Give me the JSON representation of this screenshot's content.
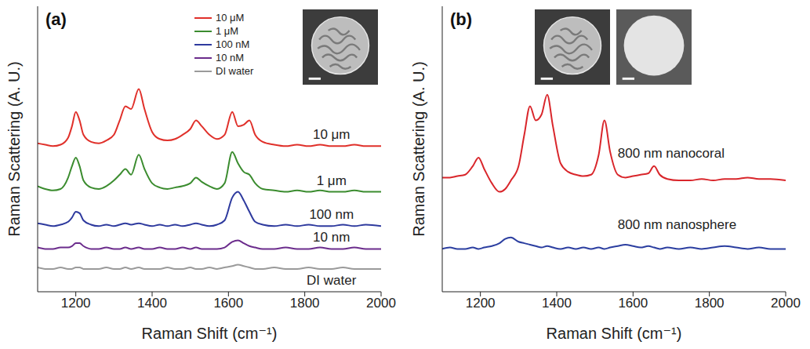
{
  "chart_data": [
    {
      "type": "line",
      "panel_label": "(a)",
      "x_label": "Raman Shift (cm⁻¹)",
      "y_label": "Raman Scattering (A. U.)",
      "xlim": [
        1100,
        2000
      ],
      "xticks": [
        1200,
        1400,
        1600,
        1800,
        2000
      ],
      "ylim": [
        0,
        100
      ],
      "tick_labels": "x",
      "legend": "top",
      "x": [
        1100,
        1120,
        1140,
        1160,
        1180,
        1190,
        1200,
        1210,
        1220,
        1240,
        1260,
        1280,
        1300,
        1315,
        1330,
        1345,
        1365,
        1380,
        1400,
        1420,
        1440,
        1460,
        1480,
        1500,
        1515,
        1530,
        1550,
        1570,
        1590,
        1610,
        1625,
        1640,
        1655,
        1670,
        1690,
        1720,
        1750,
        1780,
        1810,
        1840,
        1870,
        1900,
        1930,
        1960,
        2000
      ],
      "series": [
        {
          "name": "10 μM",
          "label": "10 μm",
          "color": "#e0302a",
          "values": [
            52,
            51.5,
            51,
            51.5,
            54,
            58,
            63,
            60,
            55,
            52.5,
            52,
            53,
            55,
            60,
            65,
            64,
            71,
            64,
            56,
            53.5,
            53,
            53.5,
            55,
            57,
            60,
            58,
            55,
            53.5,
            55,
            63,
            58,
            58.5,
            60,
            55,
            52.5,
            51.5,
            51,
            51.5,
            51,
            51.5,
            51,
            51,
            51.5,
            51,
            51
          ]
        },
        {
          "name": "1 μM",
          "label": "1 μm",
          "color": "#3b8c2f",
          "values": [
            37,
            36,
            35.5,
            36,
            40,
            44,
            47,
            44,
            39,
            36.5,
            36,
            37,
            39,
            41,
            43,
            41,
            48,
            43,
            38,
            36.5,
            36,
            36.5,
            37,
            38,
            40,
            38.5,
            37,
            36,
            38,
            49,
            45,
            42,
            41,
            38,
            36,
            35.5,
            35,
            35.5,
            35,
            35.5,
            35,
            35,
            35.5,
            35,
            35
          ]
        },
        {
          "name": "100 nM",
          "label": "100 nm",
          "color": "#2e3a9e",
          "values": [
            24,
            23.5,
            23,
            23.5,
            24.5,
            26,
            28,
            27.5,
            25,
            23.5,
            23,
            23.5,
            23,
            23.5,
            24,
            23.5,
            24,
            23.5,
            23,
            23.5,
            23,
            23.5,
            23,
            23.5,
            24,
            23.5,
            23,
            23.5,
            25,
            33,
            35,
            32,
            28,
            24.5,
            23.5,
            23,
            23.5,
            23,
            23.5,
            23,
            23,
            23.5,
            23,
            23.5,
            23
          ]
        },
        {
          "name": "10 nM",
          "label": "10 nm",
          "color": "#6b2c8c",
          "values": [
            15.5,
            15,
            15,
            15.5,
            15.5,
            16,
            17,
            17,
            16,
            15,
            15,
            15.5,
            15,
            15,
            15.5,
            15,
            15.5,
            15,
            15,
            15.5,
            15,
            15,
            15.5,
            15,
            15.5,
            15,
            15,
            15,
            15.5,
            17.5,
            18,
            17,
            16,
            15.5,
            15,
            15,
            15.5,
            15,
            15,
            15.5,
            15,
            15,
            15.5,
            15,
            15
          ]
        },
        {
          "name": "DI water",
          "label": "DI water",
          "color": "#9a9a9a",
          "values": [
            8.5,
            8,
            8,
            8.5,
            8,
            8,
            8.5,
            8.5,
            8,
            8,
            8,
            8.5,
            8,
            8,
            8.5,
            8,
            8.5,
            8,
            8,
            8,
            8.5,
            8,
            8,
            8.5,
            8,
            8,
            8.5,
            8,
            8.5,
            9,
            9.5,
            9,
            8.5,
            8,
            8,
            8.5,
            8,
            8,
            8.5,
            8,
            8,
            8.5,
            8,
            8,
            8
          ]
        }
      ]
    },
    {
      "type": "line",
      "panel_label": "(b)",
      "x_label": "Raman Shift (cm⁻¹)",
      "y_label": "Raman Scattering (A. U.)",
      "xlim": [
        1100,
        2000
      ],
      "xticks": [
        1200,
        1400,
        1600,
        1800,
        2000
      ],
      "ylim": [
        0,
        100
      ],
      "tick_labels": "x",
      "x": [
        1100,
        1120,
        1140,
        1160,
        1180,
        1195,
        1210,
        1230,
        1250,
        1265,
        1280,
        1300,
        1315,
        1330,
        1345,
        1360,
        1375,
        1390,
        1410,
        1430,
        1450,
        1470,
        1490,
        1510,
        1525,
        1540,
        1560,
        1580,
        1600,
        1620,
        1640,
        1655,
        1670,
        1690,
        1720,
        1750,
        1780,
        1810,
        1840,
        1870,
        1900,
        1930,
        1960,
        2000
      ],
      "series": [
        {
          "name": "800 nm nanocoral",
          "color": "#d9262b",
          "values": [
            40,
            40,
            40.5,
            41,
            44,
            47,
            43,
            38,
            35,
            36,
            39,
            44,
            55,
            65,
            60,
            62,
            69,
            58,
            45,
            42,
            41,
            40.5,
            41,
            48,
            60,
            49,
            41,
            40,
            40.5,
            41,
            41.5,
            44,
            41,
            39.5,
            39,
            39,
            39.5,
            39,
            39.5,
            39.5,
            40,
            39.5,
            39.5,
            39
          ]
        },
        {
          "name": "800 nm nanosphere",
          "color": "#2b3ea0",
          "values": [
            15,
            15.5,
            15,
            15,
            15.5,
            15,
            15.5,
            16,
            17,
            18.5,
            19,
            17.5,
            17,
            16.5,
            16,
            15.5,
            16,
            15.5,
            15,
            15.5,
            15,
            15.5,
            15,
            15.5,
            15,
            15.5,
            16,
            16.5,
            16,
            15.5,
            16,
            15.5,
            15,
            15.5,
            15,
            15.5,
            15,
            15.5,
            16,
            15.5,
            15,
            15.5,
            15,
            15
          ]
        }
      ]
    }
  ]
}
